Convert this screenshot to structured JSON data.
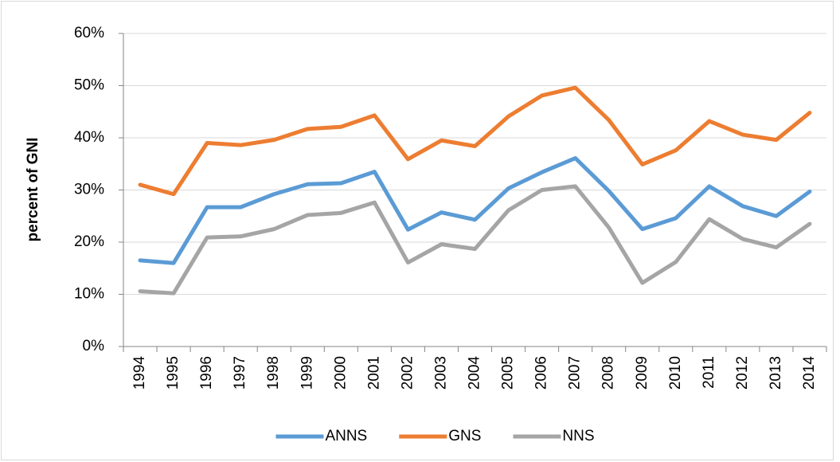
{
  "chart_data": {
    "type": "line",
    "y_label": "percent of GNI",
    "categories": [
      "1994",
      "1995",
      "1996",
      "1997",
      "1998",
      "1999",
      "2000",
      "2001",
      "2002",
      "2003",
      "2004",
      "2005",
      "2006",
      "2007",
      "2008",
      "2009",
      "2010",
      "2011",
      "2012",
      "2013",
      "2014"
    ],
    "series": [
      {
        "name": "ANNS",
        "color": "#5b9bd5",
        "values": [
          16.5,
          16,
          26.7,
          26.7,
          29.2,
          31.1,
          31.3,
          33.5,
          22.4,
          25.7,
          24.3,
          30.3,
          33.4,
          36.1,
          29.8,
          22.5,
          24.6,
          30.7,
          26.9,
          25,
          29.7
        ]
      },
      {
        "name": "GNS",
        "color": "#ed7d31",
        "values": [
          31,
          29.2,
          39,
          38.6,
          39.6,
          41.7,
          42.1,
          44.3,
          35.9,
          39.5,
          38.4,
          44.1,
          48.1,
          49.6,
          43.4,
          34.9,
          37.6,
          43.2,
          40.6,
          39.6,
          44.8
        ]
      },
      {
        "name": "NNS",
        "color": "#a5a5a5",
        "values": [
          10.6,
          10.2,
          20.9,
          21.1,
          22.5,
          25.2,
          25.6,
          27.6,
          16.1,
          19.6,
          18.7,
          26.1,
          30,
          30.7,
          22.8,
          12.2,
          16.2,
          24.4,
          20.6,
          19,
          23.5
        ]
      }
    ],
    "ylim": [
      0,
      60
    ],
    "yticks": [
      {
        "value": 0,
        "label": "0%"
      },
      {
        "value": 10,
        "label": "10%"
      },
      {
        "value": 20,
        "label": "20%"
      },
      {
        "value": 30,
        "label": "30%"
      },
      {
        "value": 40,
        "label": "40%"
      },
      {
        "value": 50,
        "label": "50%"
      },
      {
        "value": 60,
        "label": "60%"
      }
    ],
    "grid": true,
    "legend": "bottom"
  }
}
